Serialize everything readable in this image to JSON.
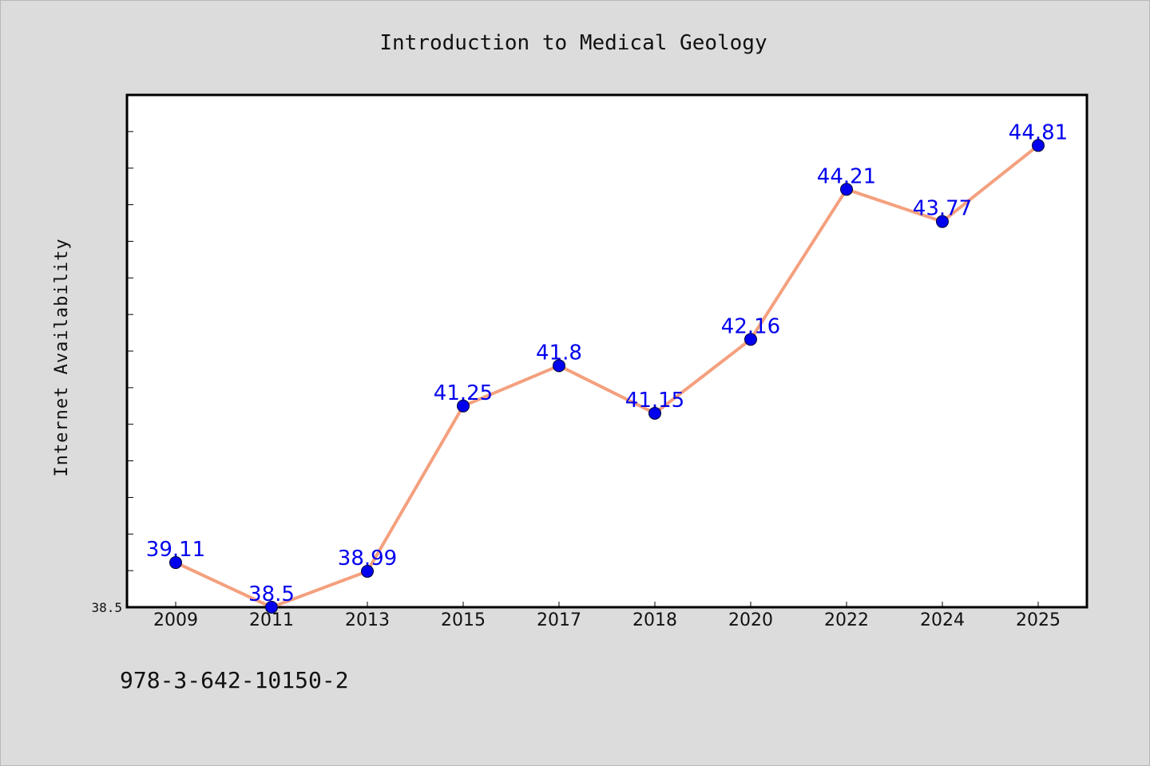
{
  "chart_data": {
    "type": "line",
    "title": "Introduction to Medical Geology",
    "ylabel": "Internet Availability",
    "xlabel": "",
    "categories": [
      "2009",
      "2011",
      "2013",
      "2015",
      "2017",
      "2018",
      "2020",
      "2022",
      "2024",
      "2025"
    ],
    "series": [
      {
        "values": [
          39.11,
          38.5,
          38.99,
          41.25,
          41.8,
          41.15,
          42.16,
          44.21,
          43.77,
          44.81
        ],
        "labels": [
          "39.11",
          "38.5",
          "38.99",
          "41.25",
          "41.8",
          "41.15",
          "42.16",
          "44.21",
          "43.77",
          "44.81"
        ]
      }
    ],
    "yticks_shown": [
      "38.5"
    ],
    "ylim": [
      38.5,
      45.5
    ],
    "grid": false,
    "colors": {
      "line": "#f4a07e",
      "marker": "#0000ee",
      "marker_edge": "#000033",
      "data_label": "#0000ee",
      "plot_bg": "#ffffff",
      "page_bg": "#dcdcdc"
    }
  },
  "footer": {
    "isbn": "978-3-642-10150-2"
  }
}
